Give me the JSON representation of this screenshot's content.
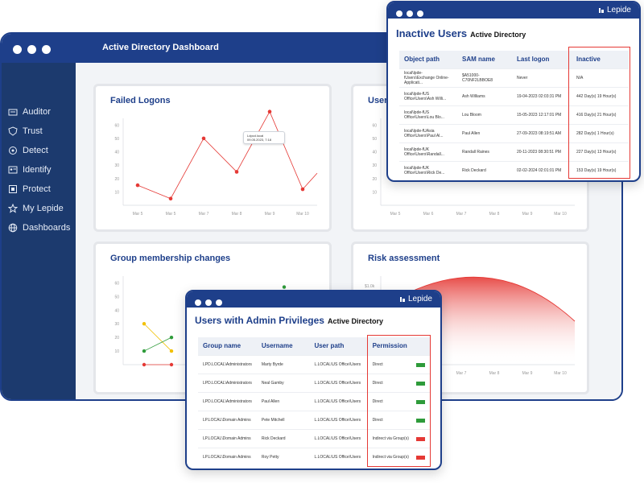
{
  "dashboard": {
    "title": "Active Directory Dashboard",
    "sidebar": [
      {
        "label": "Auditor",
        "icon": "auditor-icon"
      },
      {
        "label": "Trust",
        "icon": "shield-icon"
      },
      {
        "label": "Detect",
        "icon": "detect-icon"
      },
      {
        "label": "Identify",
        "icon": "id-card-icon"
      },
      {
        "label": "Protect",
        "icon": "protect-icon"
      },
      {
        "label": "My Lepide",
        "icon": "star-icon"
      },
      {
        "label": "Dashboards",
        "icon": "globe-icon"
      }
    ],
    "cards": {
      "failed_logons": "Failed Logons",
      "users_partial": "Users",
      "group_membership": "Group membership changes",
      "risk": "Risk assessment"
    },
    "tooltip": {
      "line1": "Ldpcd.local",
      "line2": "09.05.2023, 7:18"
    },
    "risk_axis_label": "$1.0k"
  },
  "chart_data": [
    {
      "type": "line",
      "title": "Failed Logons",
      "categories": [
        "Mar 5",
        "Mar 5",
        "Mar 7",
        "Mar 8",
        "Mar 9",
        "Mar 10"
      ],
      "series": [
        {
          "values": [
            15,
            5,
            50,
            25,
            70,
            12
          ]
        }
      ],
      "yticks": [
        10,
        20,
        30,
        40,
        50,
        60
      ],
      "ylim": [
        0,
        65
      ],
      "color": "#e53935"
    },
    {
      "type": "line",
      "title": "Users",
      "categories": [
        "Mar 5",
        "Mar 6",
        "Mar 7",
        "Mar 8",
        "Mar 9",
        "Mar 10"
      ],
      "yticks": [
        10,
        20,
        30,
        40,
        50,
        60
      ],
      "ylim": [
        0,
        65
      ]
    },
    {
      "type": "line",
      "title": "Group membership changes",
      "yticks": [
        10,
        20,
        30,
        40,
        50,
        60
      ],
      "ylim": [
        0,
        65
      ],
      "series": [
        {
          "color": "#f2c000",
          "values": [
            30,
            10
          ]
        },
        {
          "color": "#2e9b3a",
          "values": [
            10,
            20
          ]
        },
        {
          "color": "#e53935",
          "values": [
            0,
            0
          ]
        }
      ]
    },
    {
      "type": "area",
      "title": "Risk assessment",
      "categories": [
        "Mar 5",
        "Mar 6",
        "Mar 7",
        "Mar 8",
        "Mar 9",
        "Mar 10"
      ]
    }
  ],
  "inactive": {
    "title": "Inactive Users",
    "subtitle": "Active Directory",
    "logo": "Lepide",
    "headers": [
      "Object path",
      "SAM name",
      "Last logon",
      "Inactive"
    ],
    "rows": [
      [
        "local\\lpde-fUsers\\Exchange Online-Applicati...",
        "$A51000-C70NF2LBBOE8",
        "Never",
        "N/A"
      ],
      [
        "local\\lpde-fUS Office\\Users\\Ash Willi...",
        "Ash Williams",
        "19-04-2023 02:03:31 PM",
        "442 Day(s) 19 Hour(s)"
      ],
      [
        "local\\lpde-fUS Office\\Users\\Lou Blo...",
        "Lou Bloom",
        "15-05-2023 12:17:01 PM",
        "416 Day(s) 21 Hour(s)"
      ],
      [
        "local\\lpde-fUAsia Office\\Users\\Paul Al...",
        "Paul Allen",
        "27-09-2023 08:19:51 AM",
        "282 Day(s) 1 Hour(s)"
      ],
      [
        "local\\lpde-fUK Office\\Users\\Randall...",
        "Randall Raines",
        "20-11-2023 08:30:51 PM",
        "227 Day(s) 13 Hour(s)"
      ],
      [
        "local\\lpde-fUK Office\\Users\\Rick De...",
        "Rick Deckard",
        "02-02-2024 02:01:01 PM",
        "153 Day(s) 19 Hour(s)"
      ]
    ]
  },
  "admin": {
    "title": "Users with Admin Privileges",
    "subtitle": "Active Directory",
    "logo": "Lepide",
    "headers": [
      "Group name",
      "Username",
      "User path",
      "Permission"
    ],
    "rows": [
      {
        "group": "LPD.LOCAL\\Administrators",
        "user": "Marty Byrde",
        "path": "L.LOCAL\\US Office\\Users",
        "perm": "Direct",
        "color": "#2e9b3a"
      },
      {
        "group": "LPD.LOCAL\\Administrators",
        "user": "Neal Gamby",
        "path": "L.LOCAL\\US Office\\Users",
        "perm": "Direct",
        "color": "#2e9b3a"
      },
      {
        "group": "LPD.LOCAL\\Administrators",
        "user": "Paul Allen",
        "path": "L.LOCAL\\US Office\\Users",
        "perm": "Direct",
        "color": "#2e9b3a"
      },
      {
        "group": "LP.LOCAL\\Domain Admins",
        "user": "Pete Mitchell",
        "path": "L.LOCAL\\US Office\\Users",
        "perm": "Direct",
        "color": "#2e9b3a"
      },
      {
        "group": "LP.LOCAL\\Domain Admins",
        "user": "Rick Deckard",
        "path": "L.LOCAL\\US Office\\Users",
        "perm": "Indirect via Group(s)",
        "color": "#e53935"
      },
      {
        "group": "LP.LOCAL\\Domain Admins",
        "user": "Roy Petty",
        "path": "L.LOCAL\\US Office\\Users",
        "perm": "Indirect via Group(s)",
        "color": "#e53935"
      }
    ]
  }
}
